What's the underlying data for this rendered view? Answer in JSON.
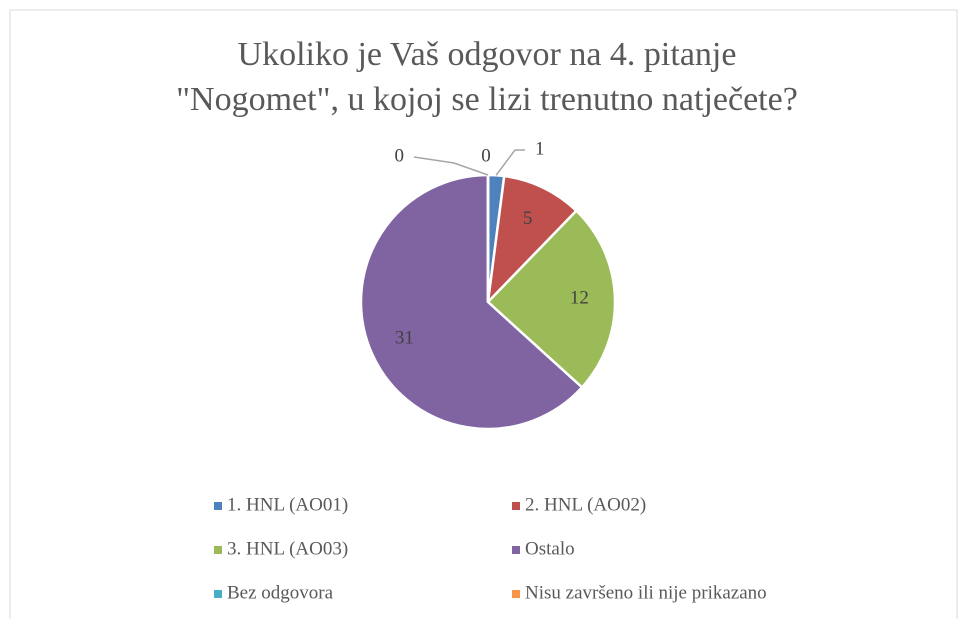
{
  "chart_data": {
    "type": "pie",
    "title": [
      "Ukoliko je Vaš odgovor na 4. pitanje",
      "\"Nogomet\", u kojoj se lizi trenutno natječete?"
    ],
    "categories": [
      "1. HNL (AO01)",
      "2. HNL (AO02)",
      "3. HNL (AO03)",
      "Ostalo",
      "Bez odgovora",
      "Nisu završeno ili nije prikazano"
    ],
    "values": [
      1,
      5,
      12,
      31,
      0,
      0
    ],
    "colors": [
      "#4f81bd",
      "#c0504d",
      "#9bbb59",
      "#8064a2",
      "#4bacc6",
      "#f79646"
    ],
    "legend": "bottom"
  }
}
